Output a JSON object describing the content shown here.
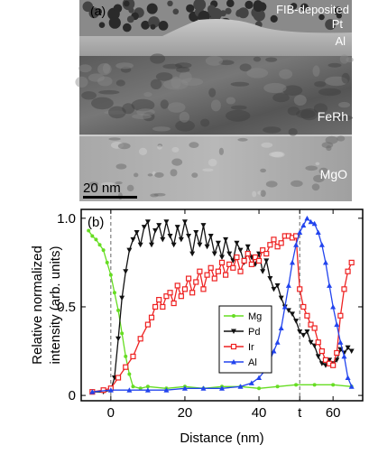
{
  "panel_a": {
    "label": "(a)",
    "layers": [
      "FIB-deposited",
      "Pt",
      "Al",
      "FeRh",
      "MgO"
    ],
    "scale_bar": "20 nm"
  },
  "panel_b": {
    "label": "(b)",
    "xlabel": "Distance (nm)",
    "ylabel_line1": "Relative normalized",
    "ylabel_line2": "intensity (arb. units)",
    "x_ticks": [
      "0",
      "20",
      "40",
      "t",
      "60"
    ],
    "y_ticks": [
      "0",
      "0.5",
      "1.0"
    ]
  },
  "chart_data": {
    "type": "line",
    "xlabel": "Distance (nm)",
    "ylabel": "Relative normalized intensity (arb. units)",
    "xlim": [
      -8,
      68
    ],
    "ylim": [
      -0.03,
      1.05
    ],
    "dashed_lines_x": [
      0,
      51
    ],
    "x_tick_values": [
      0,
      20,
      40,
      51,
      60
    ],
    "y_tick_values": [
      0,
      0.5,
      1.0
    ],
    "grid": false,
    "legend_position": "center-right",
    "series": [
      {
        "name": "Mg",
        "color": "#66dd22",
        "marker": "circle",
        "x": [
          -6,
          -5,
          -4,
          -3,
          -2,
          -1,
          0,
          1,
          2,
          3,
          4,
          5,
          6,
          8,
          10,
          15,
          20,
          25,
          30,
          35,
          40,
          45,
          50,
          55,
          60,
          65
        ],
        "y": [
          0.93,
          0.9,
          0.88,
          0.85,
          0.82,
          0.75,
          0.68,
          0.58,
          0.48,
          0.35,
          0.22,
          0.12,
          0.05,
          0.04,
          0.05,
          0.04,
          0.05,
          0.04,
          0.05,
          0.05,
          0.04,
          0.05,
          0.06,
          0.06,
          0.06,
          0.05
        ]
      },
      {
        "name": "Pd",
        "color": "#111111",
        "marker": "triangle-down",
        "x": [
          -5,
          -2,
          0,
          1,
          2,
          3,
          4,
          5,
          6,
          7,
          8,
          9,
          10,
          11,
          12,
          13,
          14,
          15,
          16,
          17,
          18,
          19,
          20,
          21,
          22,
          23,
          24,
          25,
          26,
          27,
          28,
          29,
          30,
          31,
          32,
          33,
          34,
          35,
          36,
          37,
          38,
          39,
          40,
          41,
          42,
          43,
          44,
          45,
          46,
          47,
          48,
          49,
          50,
          51,
          52,
          53,
          54,
          55,
          56,
          57,
          58,
          59,
          60,
          61,
          62,
          63,
          64,
          65
        ],
        "y": [
          0.02,
          0.02,
          0.03,
          0.1,
          0.32,
          0.55,
          0.7,
          0.82,
          0.88,
          0.92,
          0.85,
          0.95,
          0.98,
          0.85,
          0.93,
          0.96,
          0.88,
          0.98,
          0.9,
          0.85,
          0.95,
          0.88,
          0.98,
          0.9,
          0.8,
          0.92,
          0.85,
          0.96,
          0.84,
          0.9,
          0.8,
          0.86,
          0.78,
          0.88,
          0.8,
          0.76,
          0.86,
          0.82,
          0.75,
          0.84,
          0.78,
          0.74,
          0.8,
          0.7,
          0.76,
          0.66,
          0.6,
          0.62,
          0.55,
          0.5,
          0.48,
          0.46,
          0.42,
          0.36,
          0.34,
          0.36,
          0.3,
          0.28,
          0.22,
          0.18,
          0.17,
          0.2,
          0.18,
          0.2,
          0.26,
          0.24,
          0.27,
          0.25
        ]
      },
      {
        "name": "Ir",
        "color": "#ee2222",
        "marker": "square",
        "x": [
          -5,
          -2,
          0,
          2,
          4,
          6,
          8,
          10,
          11,
          12,
          13,
          14,
          15,
          16,
          17,
          18,
          19,
          20,
          21,
          22,
          23,
          24,
          25,
          26,
          27,
          28,
          29,
          30,
          31,
          32,
          33,
          34,
          35,
          36,
          37,
          38,
          39,
          40,
          41,
          42,
          43,
          44,
          45,
          46,
          47,
          48,
          49,
          50,
          51,
          52,
          53,
          54,
          55,
          56,
          57,
          58,
          59,
          60,
          61,
          62,
          63,
          64,
          65
        ],
        "y": [
          0.02,
          0.03,
          0.04,
          0.1,
          0.16,
          0.22,
          0.32,
          0.4,
          0.44,
          0.5,
          0.54,
          0.5,
          0.56,
          0.58,
          0.52,
          0.62,
          0.56,
          0.6,
          0.66,
          0.58,
          0.64,
          0.7,
          0.6,
          0.68,
          0.72,
          0.66,
          0.7,
          0.75,
          0.68,
          0.74,
          0.72,
          0.78,
          0.7,
          0.76,
          0.8,
          0.74,
          0.78,
          0.76,
          0.82,
          0.8,
          0.85,
          0.88,
          0.84,
          0.86,
          0.9,
          0.9,
          0.89,
          0.9,
          0.6,
          0.5,
          0.45,
          0.4,
          0.38,
          0.3,
          0.25,
          0.2,
          0.18,
          0.17,
          0.24,
          0.45,
          0.6,
          0.7,
          0.75
        ]
      },
      {
        "name": "Al",
        "color": "#2244ee",
        "marker": "triangle-up",
        "x": [
          -5,
          0,
          5,
          10,
          15,
          20,
          25,
          30,
          35,
          38,
          40,
          42,
          44,
          45,
          46,
          47,
          48,
          49,
          50,
          51,
          52,
          53,
          54,
          55,
          56,
          57,
          58,
          59,
          60,
          61,
          62,
          63,
          64,
          65
        ],
        "y": [
          0.02,
          0.03,
          0.03,
          0.03,
          0.03,
          0.04,
          0.04,
          0.04,
          0.05,
          0.07,
          0.1,
          0.15,
          0.25,
          0.3,
          0.38,
          0.5,
          0.62,
          0.75,
          0.85,
          0.92,
          0.96,
          1.0,
          0.98,
          0.97,
          0.92,
          0.85,
          0.75,
          0.62,
          0.5,
          0.4,
          0.3,
          0.22,
          0.1,
          0.05
        ]
      }
    ]
  }
}
